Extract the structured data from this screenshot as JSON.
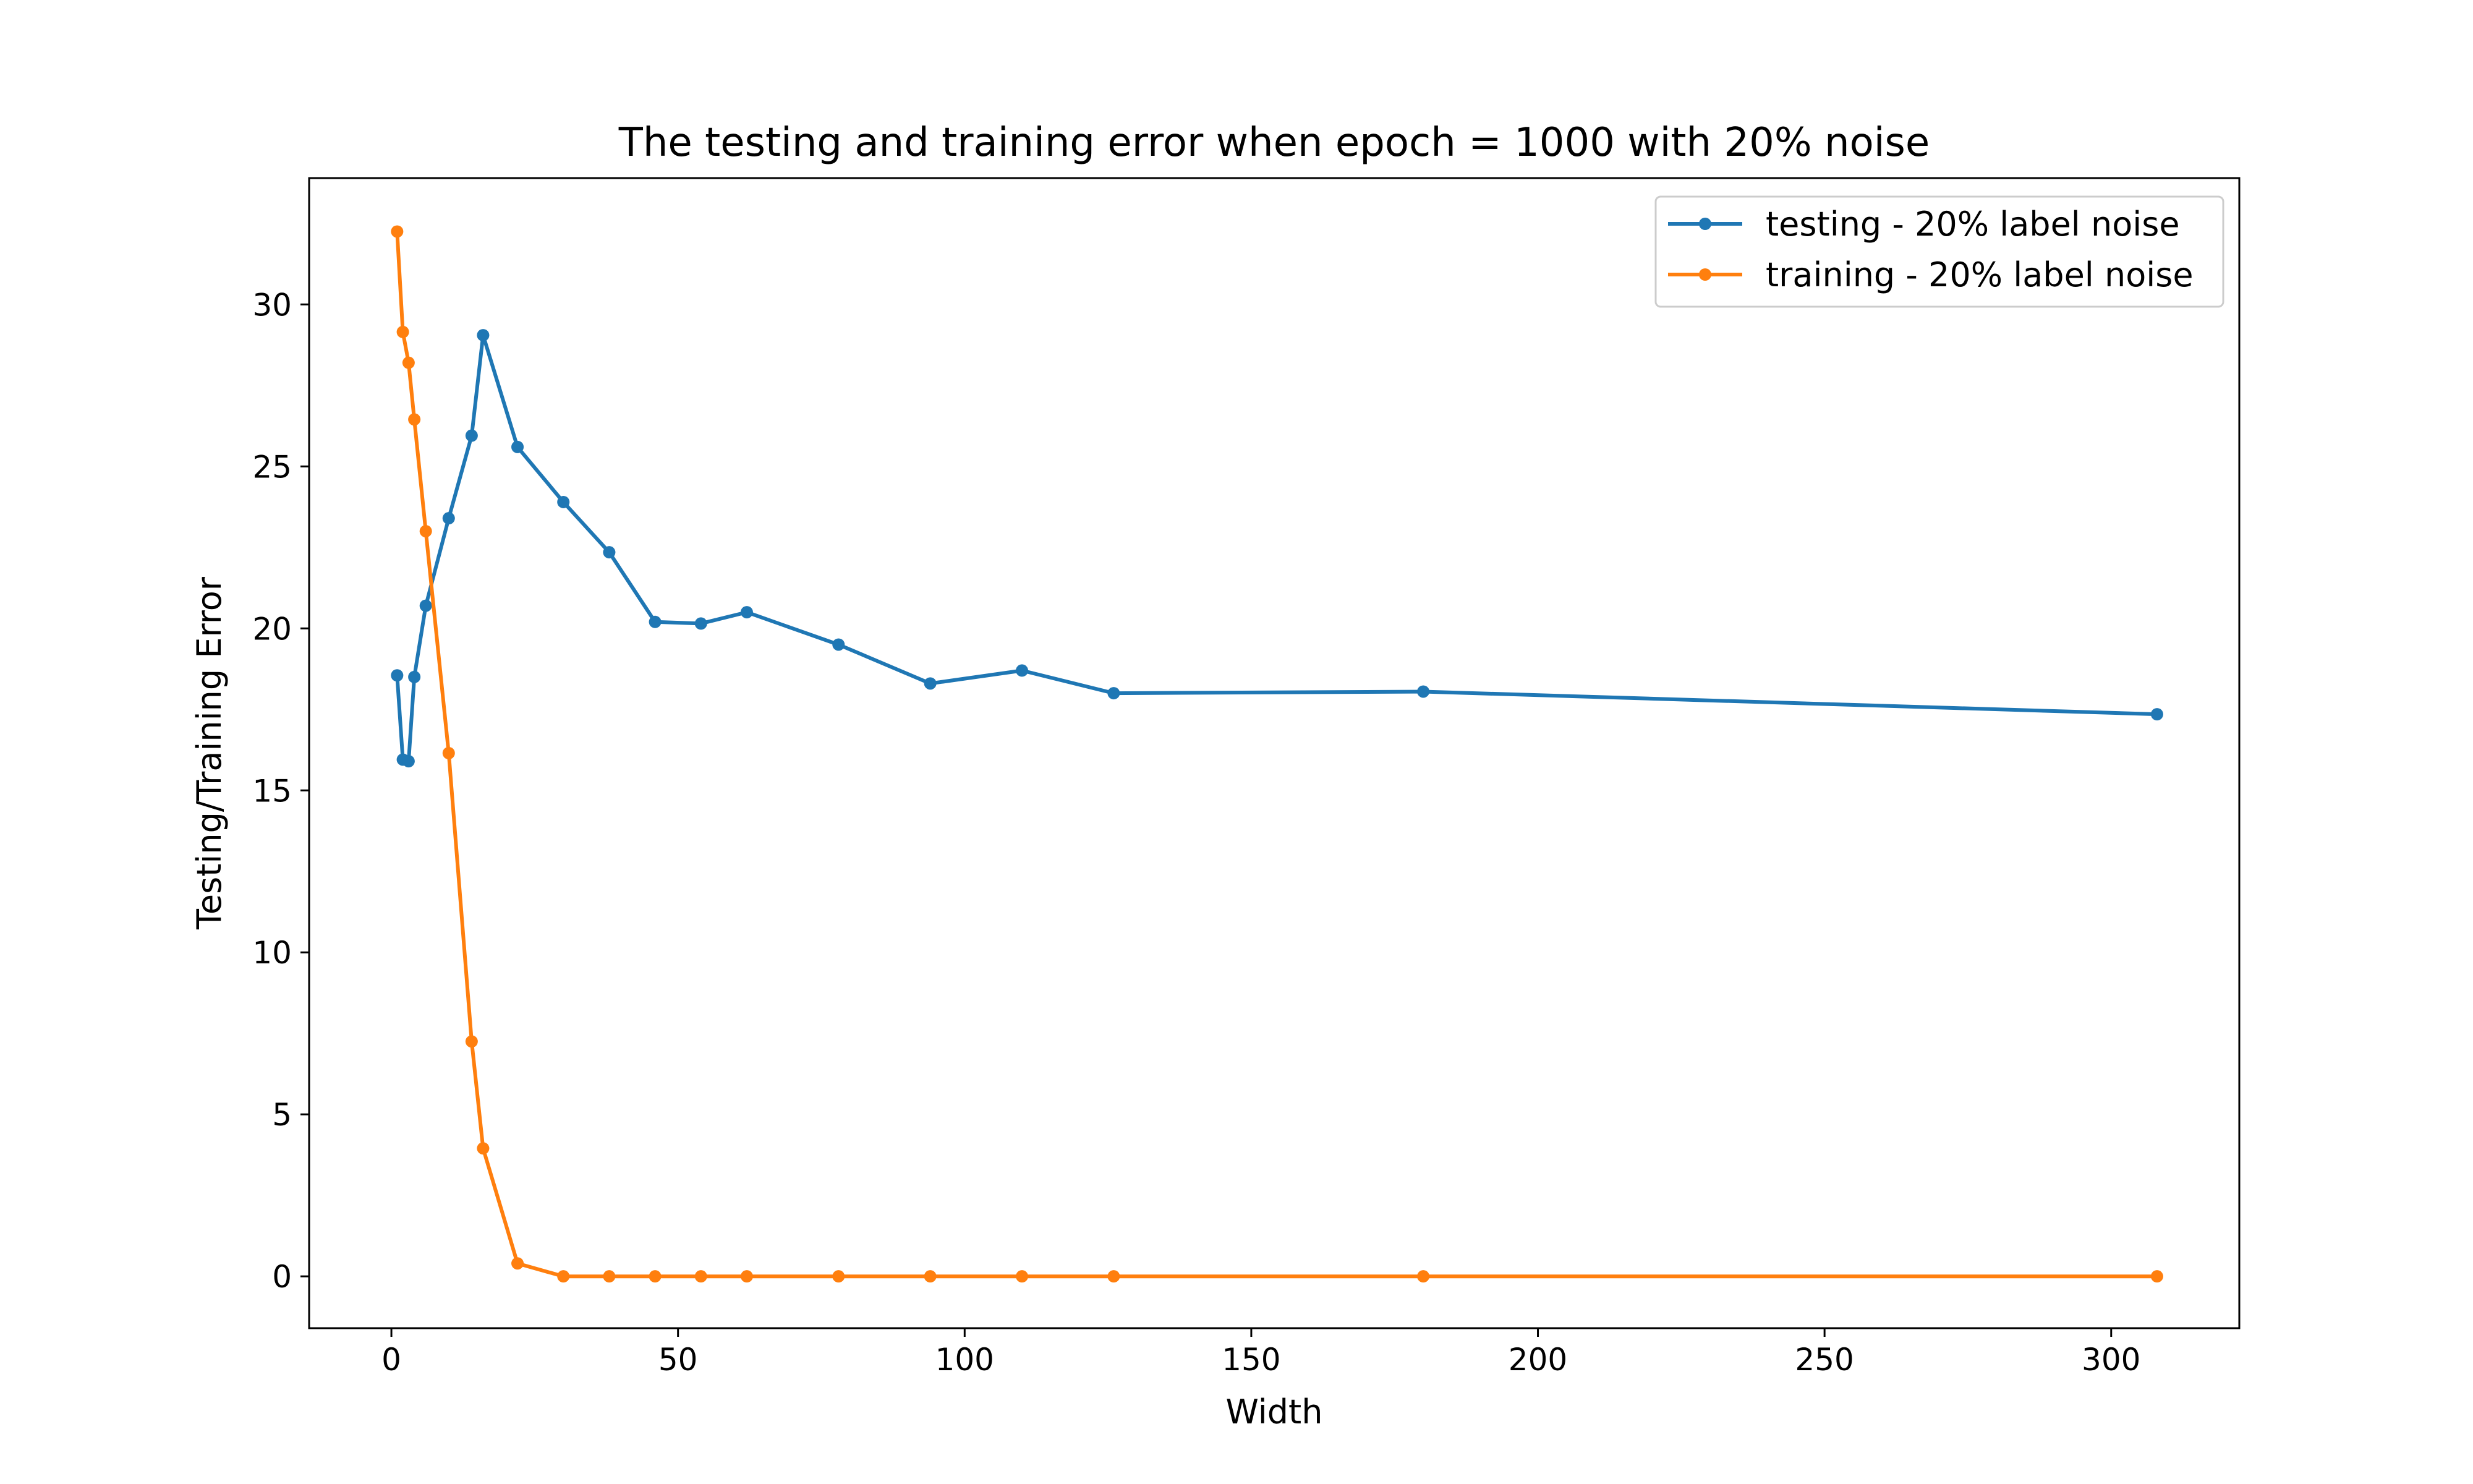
{
  "chart_data": {
    "type": "line",
    "title": "The testing and training error when epoch = 1000 with 20% noise",
    "xlabel": "Width",
    "ylabel": "Testing/Training Error",
    "xlim": [
      -14.35,
      322.35
    ],
    "ylim": [
      -1.6,
      33.9
    ],
    "xticks": [
      0,
      50,
      100,
      150,
      200,
      250,
      300
    ],
    "xtick_labels": [
      "0",
      "50",
      "100",
      "150",
      "200",
      "250",
      "300"
    ],
    "yticks": [
      0,
      5,
      10,
      15,
      20,
      25,
      30
    ],
    "ytick_labels": [
      "0",
      "5",
      "10",
      "15",
      "20",
      "25",
      "30"
    ],
    "grid": false,
    "legend_position": "top-right",
    "x": [
      1,
      2,
      3,
      4,
      6,
      10,
      14,
      16,
      22,
      30,
      38,
      46,
      54,
      62,
      78,
      94,
      110,
      126,
      180,
      308
    ],
    "series": [
      {
        "name": "testing - 20% label noise",
        "color": "#1f77b4",
        "values": [
          18.55,
          15.95,
          15.9,
          18.5,
          20.7,
          23.4,
          25.95,
          29.05,
          25.6,
          23.9,
          22.35,
          20.2,
          20.15,
          20.5,
          19.5,
          18.3,
          18.7,
          18.0,
          18.05,
          17.35
        ]
      },
      {
        "name": "training - 20% label noise",
        "color": "#ff7f0e",
        "values": [
          32.25,
          29.15,
          28.2,
          26.45,
          23.0,
          16.15,
          7.25,
          3.95,
          0.4,
          0.0,
          0.0,
          0.0,
          0.0,
          0.0,
          0.0,
          0.0,
          0.0,
          0.0,
          0.0,
          0.0
        ]
      }
    ]
  }
}
